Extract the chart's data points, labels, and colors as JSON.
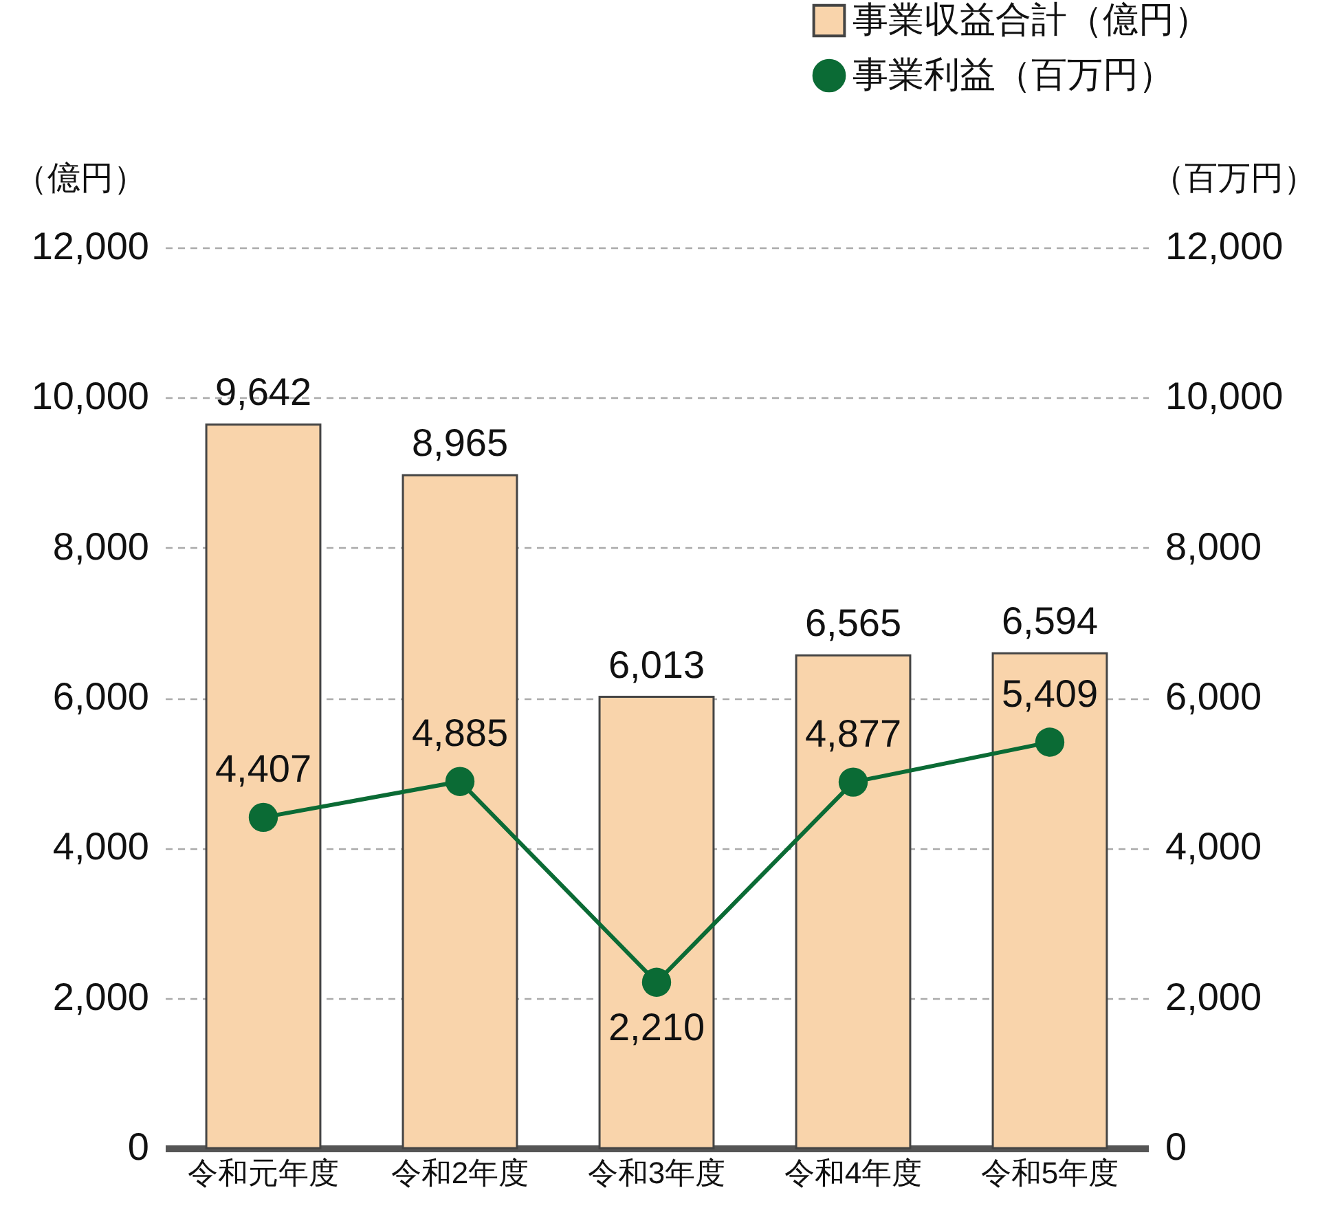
{
  "chart_data": {
    "type": "bar",
    "categories": [
      "令和元年度",
      "令和2年度",
      "令和3年度",
      "令和4年度",
      "令和5年度"
    ],
    "series": [
      {
        "name": "事業収益合計（億円）",
        "color": "#f9d4ab",
        "values": [
          9642,
          8965,
          6013,
          6565,
          6594
        ],
        "value_labels": [
          "9,642",
          "8,965",
          "6,013",
          "6,565",
          "6,594"
        ]
      },
      {
        "name": "事業利益（百万円）",
        "type": "line",
        "axis": "y2",
        "color": "#0b6b35",
        "values": [
          4407,
          4885,
          2210,
          4877,
          5409
        ],
        "value_labels": [
          "4,407",
          "4,885",
          "2,210",
          "4,877",
          "5,409"
        ]
      }
    ],
    "ylabel": "（億円）",
    "y2label": "（百万円）",
    "ylim": [
      0,
      12000
    ],
    "yticks": [
      0,
      {
        "value": 2000,
        "label": "2,000"
      },
      {
        "value": 4000,
        "label": "4,000"
      },
      {
        "value": 6000,
        "label": "6,000"
      },
      {
        "value": 8000,
        "label": "8,000"
      },
      {
        "value": 10000,
        "label": "10,000"
      },
      {
        "value": 12000,
        "label": "12,000"
      }
    ],
    "y2lim": [
      0,
      12000
    ],
    "y2ticks": [
      0,
      {
        "value": 2000,
        "label": "2,000"
      },
      {
        "value": 4000,
        "label": "4,000"
      },
      {
        "value": 6000,
        "label": "6,000"
      },
      {
        "value": 8000,
        "label": "8,000"
      },
      {
        "value": 10000,
        "label": "10,000"
      },
      {
        "value": 12000,
        "label": "12,000"
      }
    ],
    "grid": "y",
    "legend": "top right",
    "marker": "circle",
    "line_style": "solid"
  }
}
